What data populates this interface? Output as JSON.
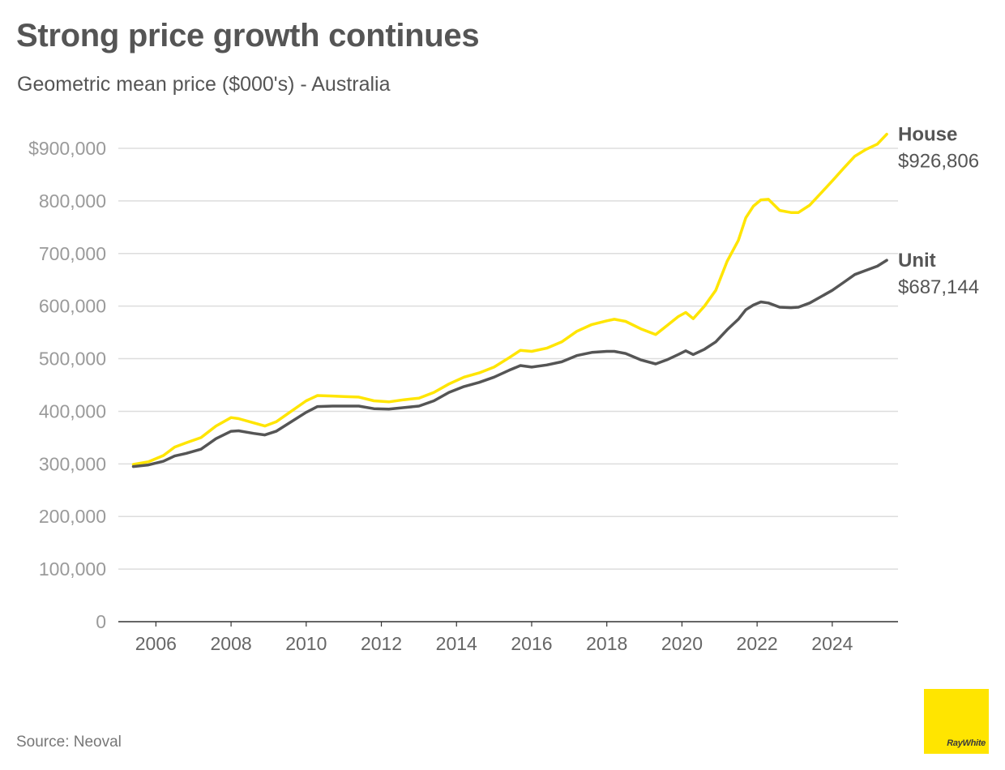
{
  "title": "Strong price growth continues",
  "subtitle": "Geometric mean price ($000's) - Australia",
  "source": "Source: Neoval",
  "brand": {
    "name": "RayWhite",
    "color": "#FFE500"
  },
  "chart_data": {
    "type": "line",
    "title": "Strong price growth continues",
    "subtitle": "Geometric mean price ($000's) - Australia",
    "xlabel": "",
    "ylabel": "",
    "ylim": [
      0,
      900000
    ],
    "xlim": [
      2005.0,
      2025.75
    ],
    "grid": "horizontal",
    "legend": "end-labels",
    "y_ticks": [
      {
        "value": 0,
        "label": "0"
      },
      {
        "value": 100000,
        "label": "100,000"
      },
      {
        "value": 200000,
        "label": "200,000"
      },
      {
        "value": 300000,
        "label": "300,000"
      },
      {
        "value": 400000,
        "label": "400,000"
      },
      {
        "value": 500000,
        "label": "500,000"
      },
      {
        "value": 600000,
        "label": "600,000"
      },
      {
        "value": 700000,
        "label": "700,000"
      },
      {
        "value": 800000,
        "label": "800,000"
      },
      {
        "value": 900000,
        "label": "$900,000"
      }
    ],
    "x_ticks": [
      {
        "value": 2006,
        "label": "2006"
      },
      {
        "value": 2008,
        "label": "2008"
      },
      {
        "value": 2010,
        "label": "2010"
      },
      {
        "value": 2012,
        "label": "2012"
      },
      {
        "value": 2014,
        "label": "2014"
      },
      {
        "value": 2016,
        "label": "2016"
      },
      {
        "value": 2018,
        "label": "2018"
      },
      {
        "value": 2020,
        "label": "2020"
      },
      {
        "value": 2022,
        "label": "2022"
      },
      {
        "value": 2024,
        "label": "2024"
      }
    ],
    "series": [
      {
        "name": "House",
        "end_label": "$926,806",
        "color": "#FFE500",
        "points": [
          [
            2005.4,
            299000
          ],
          [
            2005.8,
            304000
          ],
          [
            2006.2,
            316000
          ],
          [
            2006.5,
            332000
          ],
          [
            2006.8,
            340000
          ],
          [
            2007.2,
            350000
          ],
          [
            2007.6,
            372000
          ],
          [
            2008.0,
            388000
          ],
          [
            2008.2,
            386000
          ],
          [
            2008.6,
            378000
          ],
          [
            2008.9,
            372000
          ],
          [
            2009.2,
            380000
          ],
          [
            2009.6,
            400000
          ],
          [
            2010.0,
            420000
          ],
          [
            2010.3,
            430000
          ],
          [
            2010.7,
            429000
          ],
          [
            2011.0,
            428000
          ],
          [
            2011.4,
            427000
          ],
          [
            2011.8,
            420000
          ],
          [
            2012.2,
            418000
          ],
          [
            2012.6,
            422000
          ],
          [
            2013.0,
            425000
          ],
          [
            2013.4,
            436000
          ],
          [
            2013.8,
            452000
          ],
          [
            2014.2,
            465000
          ],
          [
            2014.6,
            473000
          ],
          [
            2015.0,
            484000
          ],
          [
            2015.4,
            502000
          ],
          [
            2015.7,
            516000
          ],
          [
            2016.0,
            514000
          ],
          [
            2016.4,
            520000
          ],
          [
            2016.8,
            532000
          ],
          [
            2017.2,
            552000
          ],
          [
            2017.6,
            565000
          ],
          [
            2018.0,
            572000
          ],
          [
            2018.2,
            575000
          ],
          [
            2018.5,
            571000
          ],
          [
            2018.9,
            557000
          ],
          [
            2019.3,
            546000
          ],
          [
            2019.6,
            563000
          ],
          [
            2019.9,
            580000
          ],
          [
            2020.1,
            588000
          ],
          [
            2020.3,
            576000
          ],
          [
            2020.6,
            600000
          ],
          [
            2020.9,
            630000
          ],
          [
            2021.2,
            685000
          ],
          [
            2021.5,
            725000
          ],
          [
            2021.7,
            768000
          ],
          [
            2021.9,
            790000
          ],
          [
            2022.1,
            802000
          ],
          [
            2022.3,
            803000
          ],
          [
            2022.6,
            782000
          ],
          [
            2022.9,
            778000
          ],
          [
            2023.1,
            778000
          ],
          [
            2023.4,
            792000
          ],
          [
            2023.7,
            815000
          ],
          [
            2024.0,
            838000
          ],
          [
            2024.3,
            862000
          ],
          [
            2024.6,
            885000
          ],
          [
            2024.9,
            898000
          ],
          [
            2025.2,
            908000
          ],
          [
            2025.45,
            926806
          ]
        ]
      },
      {
        "name": "Unit",
        "end_label": "$687,144",
        "color": "#555555",
        "points": [
          [
            2005.4,
            295000
          ],
          [
            2005.8,
            298000
          ],
          [
            2006.2,
            305000
          ],
          [
            2006.5,
            315000
          ],
          [
            2006.8,
            320000
          ],
          [
            2007.2,
            328000
          ],
          [
            2007.6,
            348000
          ],
          [
            2008.0,
            362000
          ],
          [
            2008.2,
            363000
          ],
          [
            2008.6,
            358000
          ],
          [
            2008.9,
            355000
          ],
          [
            2009.2,
            362000
          ],
          [
            2009.6,
            380000
          ],
          [
            2010.0,
            398000
          ],
          [
            2010.3,
            409000
          ],
          [
            2010.7,
            410000
          ],
          [
            2011.0,
            410000
          ],
          [
            2011.4,
            410000
          ],
          [
            2011.8,
            405000
          ],
          [
            2012.2,
            404000
          ],
          [
            2012.6,
            407000
          ],
          [
            2013.0,
            410000
          ],
          [
            2013.4,
            420000
          ],
          [
            2013.8,
            436000
          ],
          [
            2014.2,
            447000
          ],
          [
            2014.6,
            455000
          ],
          [
            2015.0,
            465000
          ],
          [
            2015.4,
            478000
          ],
          [
            2015.7,
            487000
          ],
          [
            2016.0,
            484000
          ],
          [
            2016.4,
            488000
          ],
          [
            2016.8,
            494000
          ],
          [
            2017.2,
            506000
          ],
          [
            2017.6,
            512000
          ],
          [
            2018.0,
            514000
          ],
          [
            2018.2,
            514000
          ],
          [
            2018.5,
            510000
          ],
          [
            2018.9,
            498000
          ],
          [
            2019.3,
            490000
          ],
          [
            2019.6,
            498000
          ],
          [
            2019.9,
            508000
          ],
          [
            2020.1,
            515000
          ],
          [
            2020.3,
            508000
          ],
          [
            2020.6,
            518000
          ],
          [
            2020.9,
            532000
          ],
          [
            2021.2,
            555000
          ],
          [
            2021.5,
            575000
          ],
          [
            2021.7,
            593000
          ],
          [
            2021.9,
            602000
          ],
          [
            2022.1,
            608000
          ],
          [
            2022.3,
            606000
          ],
          [
            2022.6,
            598000
          ],
          [
            2022.9,
            597000
          ],
          [
            2023.1,
            598000
          ],
          [
            2023.4,
            606000
          ],
          [
            2023.7,
            618000
          ],
          [
            2024.0,
            630000
          ],
          [
            2024.3,
            645000
          ],
          [
            2024.6,
            660000
          ],
          [
            2024.9,
            668000
          ],
          [
            2025.2,
            676000
          ],
          [
            2025.45,
            687144
          ]
        ]
      }
    ]
  }
}
